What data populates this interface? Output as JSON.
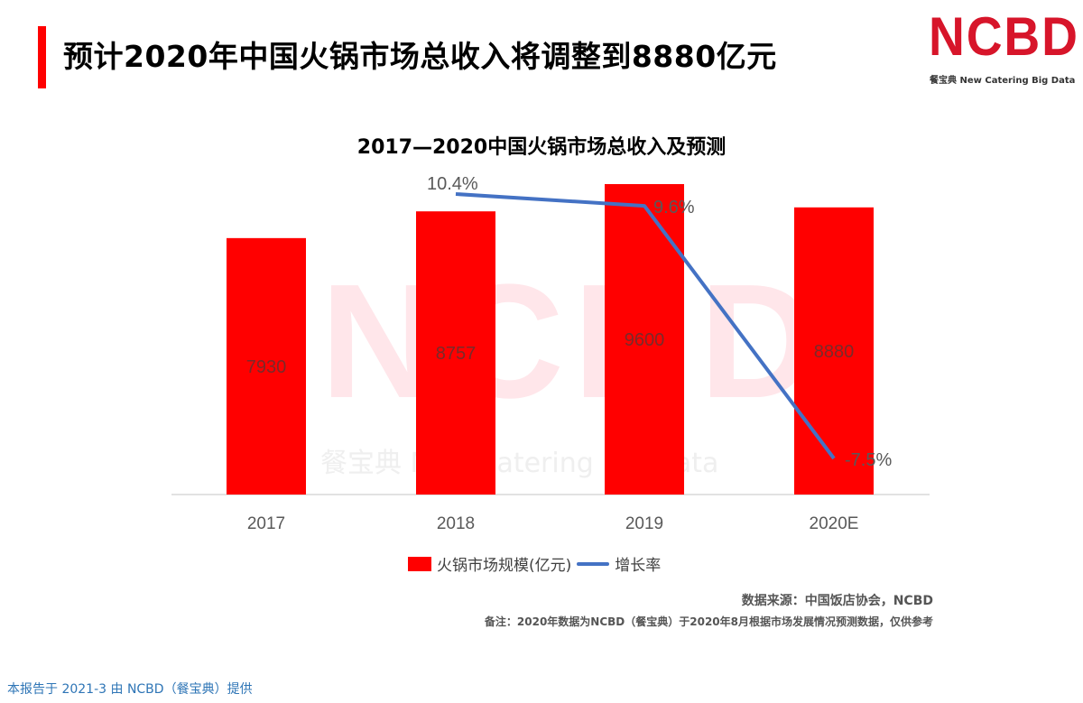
{
  "header": {
    "title": "预计2020年中国火锅市场总收入将调整到8880亿元",
    "accent_color": "#ff0000"
  },
  "logo": {
    "text": "NCBD",
    "subtitle": "餐宝典 New Catering Big Data",
    "color": "#d7152a"
  },
  "watermark": {
    "text": "NCBD",
    "subtitle": "餐宝典 New Catering Big Data"
  },
  "chart_data": {
    "type": "bar",
    "title": "2017—2020中国火锅市场总收入及预测",
    "categories": [
      "2017",
      "2018",
      "2019",
      "2020E"
    ],
    "series": [
      {
        "name": "火锅市场规模(亿元)",
        "type": "bar",
        "color": "#ff0000",
        "values": [
          7930,
          8757,
          9600,
          8880
        ]
      },
      {
        "name": "增长率",
        "type": "line",
        "color": "#4472c4",
        "values": [
          null,
          10.4,
          9.6,
          -7.5
        ],
        "labels": [
          "",
          "10.4%",
          "9.6%",
          "-7.5%"
        ]
      }
    ],
    "bar_labels": [
      "7930",
      "8757",
      "9600",
      "8880"
    ],
    "xlabel": "",
    "ylabel": "",
    "grid": false,
    "legend_position": "bottom"
  },
  "legend": {
    "bar_label": "火锅市场规模(亿元)",
    "line_label": "增长率"
  },
  "notes": {
    "source": "数据来源：中国饭店协会，NCBD",
    "remark": "备注：2020年数据为NCBD（餐宝典）于2020年8月根据市场发展情况预测数据，仅供参考"
  },
  "footer": {
    "text": "本报告于 2021-3 由 NCBD（餐宝典）提供"
  }
}
